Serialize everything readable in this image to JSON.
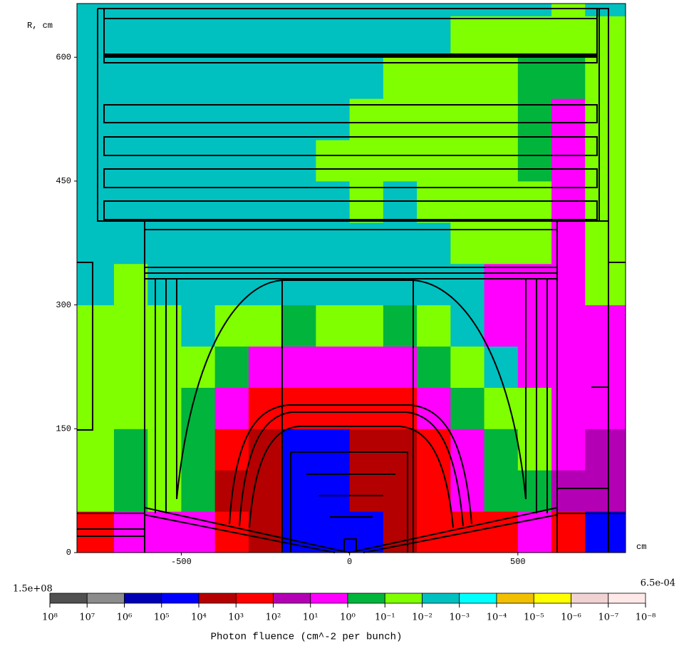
{
  "chart_data": {
    "type": "heatmap",
    "y_label": "R, cm",
    "x_label": "cm",
    "xlim": [
      -810,
      820
    ],
    "ylim": [
      0,
      665
    ],
    "xticks": [
      -500,
      0,
      500
    ],
    "yticks": [
      0,
      150,
      300,
      450,
      600
    ],
    "x_bins": [
      -810,
      -700,
      -600,
      -500,
      -400,
      -300,
      -200,
      -100,
      0,
      100,
      200,
      300,
      400,
      500,
      600,
      700,
      820
    ],
    "y_bins": [
      0,
      50,
      100,
      150,
      200,
      250,
      300,
      350,
      400,
      450,
      500,
      550,
      600,
      650,
      665
    ],
    "log_scale": true,
    "values": [
      [
        300,
        3,
        3,
        3,
        300,
        3000,
        30000,
        30000,
        30000,
        3000,
        300,
        300,
        300,
        3,
        300,
        30000
      ],
      [
        0.03,
        0.3,
        0.03,
        0.3,
        3000,
        3000,
        30000,
        30000,
        3000,
        3000,
        300,
        3,
        0.3,
        0.3,
        30,
        30
      ],
      [
        0.03,
        0.3,
        0.03,
        0.3,
        300,
        3000,
        30000,
        30000,
        3000,
        3000,
        300,
        3,
        0.3,
        0.03,
        3,
        30
      ],
      [
        0.03,
        0.03,
        0.03,
        0.3,
        3,
        300,
        300,
        300,
        300,
        300,
        3,
        0.3,
        0.03,
        0.03,
        3,
        3
      ],
      [
        0.03,
        0.03,
        0.03,
        0.03,
        0.3,
        3,
        3,
        3,
        3,
        3,
        0.3,
        0.03,
        0.003,
        3,
        3,
        3
      ],
      [
        0.03,
        0.03,
        0.03,
        0.003,
        0.03,
        0.03,
        0.3,
        0.03,
        0.03,
        0.3,
        0.03,
        0.003,
        3,
        3,
        3,
        3
      ],
      [
        0.003,
        0.03,
        0.003,
        0.003,
        0.003,
        0.003,
        0.003,
        0.003,
        0.003,
        0.003,
        0.003,
        0.003,
        3,
        3,
        3,
        0.03
      ],
      [
        0.003,
        0.003,
        0.003,
        0.003,
        0.003,
        0.003,
        0.003,
        0.003,
        0.003,
        0.003,
        0.003,
        0.03,
        0.03,
        0.03,
        3,
        0.03
      ],
      [
        0.003,
        0.003,
        0.003,
        0.003,
        0.003,
        0.003,
        0.003,
        0.003,
        0.03,
        0.003,
        0.03,
        0.03,
        0.03,
        0.03,
        3,
        0.03
      ],
      [
        0.003,
        0.003,
        0.003,
        0.003,
        0.003,
        0.003,
        0.003,
        0.03,
        0.03,
        0.03,
        0.03,
        0.03,
        0.03,
        0.3,
        3,
        0.03
      ],
      [
        0.003,
        0.003,
        0.003,
        0.003,
        0.003,
        0.003,
        0.003,
        0.003,
        0.03,
        0.03,
        0.03,
        0.03,
        0.03,
        0.3,
        3,
        0.03
      ],
      [
        0.003,
        0.003,
        0.003,
        0.003,
        0.003,
        0.003,
        0.003,
        0.003,
        0.003,
        0.03,
        0.03,
        0.03,
        0.03,
        0.3,
        0.3,
        0.03
      ],
      [
        0.003,
        0.003,
        0.003,
        0.003,
        0.003,
        0.003,
        0.003,
        0.003,
        0.003,
        0.003,
        0.003,
        0.03,
        0.03,
        0.03,
        0.03,
        0.03
      ],
      [
        0.003,
        0.003,
        0.003,
        0.003,
        0.003,
        0.003,
        0.003,
        0.003,
        0.003,
        0.003,
        0.003,
        0.003,
        0.003,
        0.003,
        0.03,
        0.003
      ]
    ],
    "colorbar": {
      "title": "Photon fluence (cm^-2 per bunch)",
      "max_label": {
        "value": 150000000,
        "label": "1.5e+08"
      },
      "min_label": {
        "value": 0.00065,
        "label": "6.5e-04"
      },
      "ticks": [
        {
          "value": 100000000,
          "label": "10⁸"
        },
        {
          "value": 10000000,
          "label": "10⁷"
        },
        {
          "value": 1000000,
          "label": "10⁶"
        },
        {
          "value": 100000,
          "label": "10⁵"
        },
        {
          "value": 10000,
          "label": "10⁴"
        },
        {
          "value": 1000,
          "label": "10³"
        },
        {
          "value": 100,
          "label": "10²"
        },
        {
          "value": 10,
          "label": "10¹"
        },
        {
          "value": 1,
          "label": "10⁰"
        },
        {
          "value": 0.1,
          "label": "10⁻¹"
        },
        {
          "value": 0.01,
          "label": "10⁻²"
        },
        {
          "value": 0.001,
          "label": "10⁻³"
        },
        {
          "value": 0.0001,
          "label": "10⁻⁴"
        },
        {
          "value": 1e-05,
          "label": "10⁻⁵"
        },
        {
          "value": 1e-06,
          "label": "10⁻⁶"
        },
        {
          "value": 1e-07,
          "label": "10⁻⁷"
        },
        {
          "value": 1e-08,
          "label": "10⁻⁸"
        }
      ],
      "colors": [
        "#505050",
        "#8c8c8c",
        "#0000b4",
        "#0000ff",
        "#b40000",
        "#ff0000",
        "#b400b4",
        "#ff00ff",
        "#00b43c",
        "#80ff00",
        "#00c0c0",
        "#00ffff",
        "#f0c000",
        "#ffff00",
        "#f0d2d2",
        "#ffe8e8"
      ]
    }
  }
}
